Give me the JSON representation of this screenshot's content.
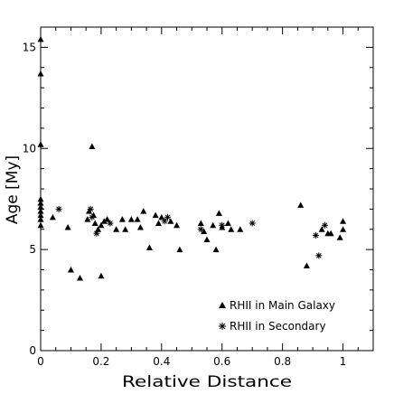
{
  "chart_data": {
    "type": "scatter",
    "xlabel": "Relative Distance",
    "ylabel": "Age [My]",
    "xlim": [
      0,
      1.1
    ],
    "ylim": [
      0,
      16
    ],
    "x_ticks": [
      0,
      0.2,
      0.4,
      0.6,
      0.8,
      1
    ],
    "x_tick_labels": [
      "0",
      "0.2",
      "0.4",
      "0.6",
      "0.8",
      "1"
    ],
    "y_ticks": [
      0,
      5,
      10,
      15
    ],
    "y_tick_labels": [
      "0",
      "5",
      "10",
      "15"
    ],
    "legend_position": "bottom-right",
    "series": [
      {
        "name": "RHII in Main Galaxy",
        "marker": "triangle",
        "points": [
          [
            0.0,
            15.4
          ],
          [
            0.0,
            13.7
          ],
          [
            0.0,
            10.2
          ],
          [
            0.0,
            7.5
          ],
          [
            0.0,
            7.3
          ],
          [
            0.0,
            7.1
          ],
          [
            0.0,
            6.9
          ],
          [
            0.0,
            6.7
          ],
          [
            0.0,
            6.5
          ],
          [
            0.0,
            6.2
          ],
          [
            0.04,
            6.6
          ],
          [
            0.09,
            6.1
          ],
          [
            0.1,
            4.0
          ],
          [
            0.13,
            3.6
          ],
          [
            0.155,
            6.5
          ],
          [
            0.16,
            6.9
          ],
          [
            0.17,
            10.1
          ],
          [
            0.175,
            6.7
          ],
          [
            0.18,
            6.3
          ],
          [
            0.19,
            6.0
          ],
          [
            0.2,
            3.7
          ],
          [
            0.2,
            6.2
          ],
          [
            0.21,
            6.4
          ],
          [
            0.22,
            6.5
          ],
          [
            0.25,
            6.0
          ],
          [
            0.27,
            6.5
          ],
          [
            0.28,
            6.0
          ],
          [
            0.3,
            6.5
          ],
          [
            0.32,
            6.5
          ],
          [
            0.33,
            6.1
          ],
          [
            0.34,
            6.9
          ],
          [
            0.36,
            5.1
          ],
          [
            0.38,
            6.7
          ],
          [
            0.39,
            6.3
          ],
          [
            0.4,
            6.6
          ],
          [
            0.43,
            6.4
          ],
          [
            0.45,
            6.2
          ],
          [
            0.46,
            5.0
          ],
          [
            0.53,
            6.3
          ],
          [
            0.54,
            5.9
          ],
          [
            0.55,
            5.5
          ],
          [
            0.57,
            6.2
          ],
          [
            0.58,
            5.0
          ],
          [
            0.59,
            6.8
          ],
          [
            0.6,
            6.1
          ],
          [
            0.62,
            6.3
          ],
          [
            0.63,
            6.0
          ],
          [
            0.66,
            6.0
          ],
          [
            0.86,
            7.2
          ],
          [
            0.88,
            4.2
          ],
          [
            0.93,
            6.0
          ],
          [
            0.95,
            5.8
          ],
          [
            0.96,
            5.8
          ],
          [
            0.99,
            5.6
          ],
          [
            1.0,
            6.0
          ],
          [
            1.0,
            6.4
          ]
        ]
      },
      {
        "name": "RHII in Secondary",
        "marker": "star",
        "points": [
          [
            0.06,
            7.0
          ],
          [
            0.165,
            7.0
          ],
          [
            0.17,
            6.6
          ],
          [
            0.185,
            5.8
          ],
          [
            0.23,
            6.3
          ],
          [
            0.41,
            6.4
          ],
          [
            0.42,
            6.6
          ],
          [
            0.53,
            6.0
          ],
          [
            0.6,
            6.2
          ],
          [
            0.7,
            6.3
          ],
          [
            0.91,
            5.7
          ],
          [
            0.92,
            4.7
          ],
          [
            0.94,
            6.2
          ]
        ]
      }
    ]
  }
}
